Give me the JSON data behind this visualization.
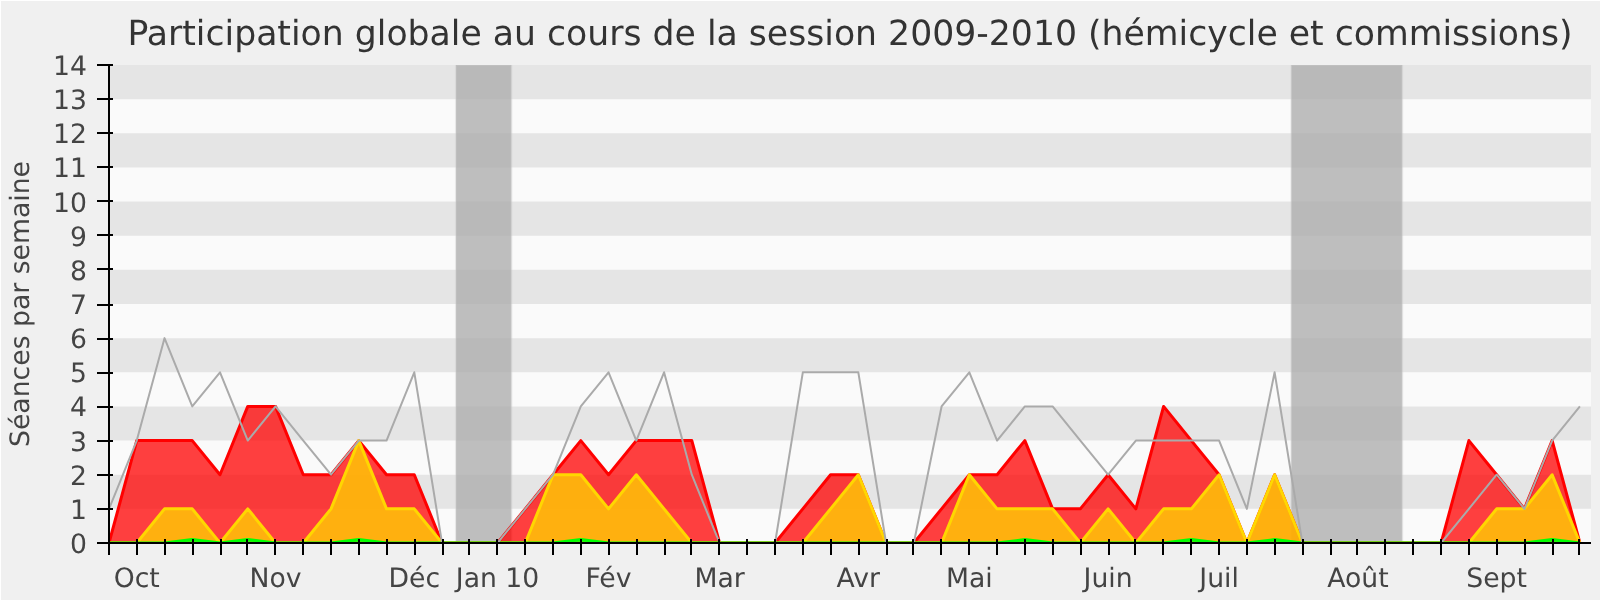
{
  "chart_data": {
    "type": "area",
    "title": "Participation globale au cours de la session 2009-2010 (hémicycle et commissions)",
    "ylabel": "Séances par semaine",
    "categories": [
      null,
      "Oct",
      null,
      null,
      null,
      null,
      "Nov",
      null,
      null,
      null,
      null,
      "Déc",
      null,
      null,
      "Jan 10",
      null,
      null,
      null,
      "Fév",
      null,
      null,
      null,
      "Mar",
      null,
      null,
      null,
      null,
      "Avr",
      null,
      null,
      null,
      "Mai",
      null,
      null,
      null,
      null,
      "Juin",
      null,
      null,
      null,
      "Juil",
      null,
      null,
      null,
      null,
      "Août",
      null,
      null,
      null,
      null,
      "Sept",
      null,
      null,
      null
    ],
    "series": [
      {
        "color": "#ff0000",
        "values": [
          0,
          3,
          3,
          3,
          2,
          4,
          4,
          2,
          2,
          3,
          2,
          2,
          0,
          0,
          0,
          1,
          2,
          3,
          2,
          3,
          3,
          3,
          0,
          0,
          0,
          1,
          2,
          2,
          0,
          0,
          1,
          2,
          2,
          3,
          1,
          1,
          2,
          1,
          4,
          3,
          2,
          0,
          2,
          0,
          0,
          0,
          0,
          0,
          0,
          3,
          2,
          1,
          3,
          0
        ]
      },
      {
        "color": "#ffd700",
        "values": [
          0,
          0,
          1,
          1,
          0,
          1,
          0,
          0,
          1,
          3,
          1,
          1,
          0,
          0,
          0,
          0,
          2,
          2,
          1,
          2,
          1,
          0,
          0,
          0,
          0,
          0,
          1,
          2,
          0,
          0,
          0,
          2,
          1,
          1,
          1,
          0,
          1,
          0,
          1,
          1,
          2,
          0,
          2,
          0,
          0,
          0,
          0,
          0,
          0,
          0,
          1,
          1,
          2,
          0
        ]
      },
      {
        "color": "#00ff00",
        "values": [
          0,
          0,
          0,
          0.1,
          0,
          0.1,
          0,
          0,
          0,
          0.1,
          0,
          0,
          0,
          0,
          0,
          0,
          0,
          0.1,
          0,
          0,
          0,
          0,
          0,
          0,
          0,
          0,
          0,
          0,
          0,
          0,
          0,
          0,
          0,
          0.1,
          0,
          0,
          0,
          0,
          0,
          0.1,
          0,
          0,
          0.1,
          0,
          0,
          0,
          0,
          0,
          0,
          0,
          0,
          0,
          0.1,
          0
        ]
      },
      {
        "type": "line",
        "color": "#aaaaaa",
        "values": [
          1,
          3,
          6,
          4,
          5,
          3,
          4,
          3,
          2,
          3,
          3,
          5,
          0,
          0,
          0,
          1,
          2,
          4,
          5,
          3,
          5,
          2,
          0,
          0,
          0,
          5,
          5,
          5,
          0,
          0,
          4,
          5,
          3,
          4,
          4,
          3,
          2,
          3,
          3,
          3,
          3,
          1,
          5,
          0,
          0,
          0,
          0,
          0,
          0,
          1,
          2,
          1,
          3,
          4
        ]
      }
    ],
    "ylim": [
      0,
      14
    ],
    "yticks": [
      0,
      1,
      2,
      3,
      4,
      5,
      6,
      7,
      8,
      9,
      10,
      11,
      12,
      13,
      14
    ],
    "grid": false
  }
}
